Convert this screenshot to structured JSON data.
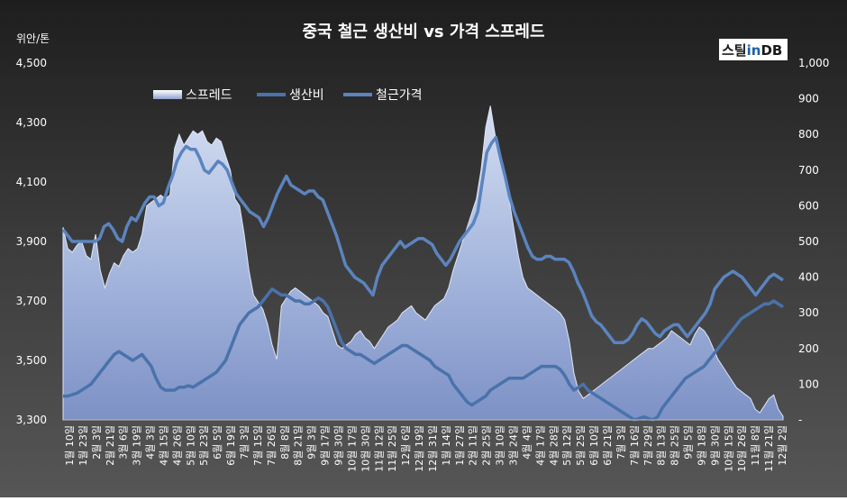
{
  "chart_data": {
    "type": "line",
    "title": "중국 철근 생산비 vs 가격 스프레드",
    "y_left_label": "위안/톤",
    "y_left_lim": [
      3300,
      4500
    ],
    "y_left_ticks": [
      "3,300",
      "3,500",
      "3,700",
      "3,900",
      "4,100",
      "4,300",
      "4,500"
    ],
    "y_right_lim": [
      0,
      1000
    ],
    "y_right_ticks": [
      "-",
      "100",
      "200",
      "300",
      "400",
      "500",
      "600",
      "700",
      "800",
      "900",
      "1,000"
    ],
    "x_tick_labels": [
      "1월 10일",
      "1월 23일",
      "2월 3일",
      "2월 21일",
      "3월 6일",
      "3월 19일",
      "4월 3일",
      "4월 15일",
      "4월 26일",
      "5월 10일",
      "5월 23일",
      "6월 5일",
      "6월 19일",
      "7월 3일",
      "7월 15일",
      "7월 26일",
      "8월 8일",
      "8월 21일",
      "9월 3일",
      "9월 17일",
      "9월 30일",
      "10월 17일",
      "10월 30일",
      "11월 12일",
      "11월 25일",
      "12월 6일",
      "12월 19일",
      "12월 31일",
      "1월 14일",
      "1월 27일",
      "2월 11일",
      "2월 25일",
      "3월 10일",
      "3월 24일",
      "4월 4일",
      "4월 17일",
      "4월 28일",
      "5월 12일",
      "5월 25일",
      "6월 10일",
      "6월 21일",
      "7월 3일",
      "7월 16일",
      "7월 29일",
      "8월 13일",
      "8월 25일",
      "9월 5일",
      "9월 18일",
      "9월 30일",
      "10월 15일",
      "10월 26일",
      "11월 8일",
      "11월 21일",
      "12월 2일"
    ],
    "series": [
      {
        "name": "스프레드",
        "axis": "right",
        "style": "area",
        "values": [
          540,
          480,
          470,
          490,
          500,
          460,
          450,
          520,
          420,
          370,
          410,
          440,
          430,
          460,
          480,
          470,
          480,
          520,
          600,
          610,
          620,
          630,
          620,
          630,
          760,
          800,
          770,
          790,
          810,
          800,
          810,
          780,
          770,
          790,
          780,
          740,
          700,
          620,
          600,
          520,
          420,
          350,
          330,
          310,
          270,
          210,
          170,
          320,
          340,
          360,
          370,
          360,
          350,
          340,
          330,
          320,
          300,
          290,
          250,
          210,
          200,
          210,
          220,
          240,
          250,
          230,
          220,
          200,
          220,
          240,
          260,
          270,
          280,
          300,
          310,
          320,
          300,
          290,
          280,
          300,
          320,
          330,
          340,
          370,
          420,
          460,
          500,
          540,
          580,
          620,
          700,
          820,
          880,
          800,
          730,
          680,
          620,
          540,
          460,
          400,
          370,
          360,
          350,
          340,
          330,
          320,
          310,
          300,
          280,
          220,
          130,
          80,
          60,
          70,
          80,
          90,
          100,
          110,
          120,
          130,
          140,
          150,
          160,
          170,
          180,
          190,
          200,
          200,
          210,
          220,
          230,
          250,
          240,
          230,
          220,
          210,
          240,
          260,
          250,
          230,
          200,
          170,
          150,
          130,
          110,
          90,
          80,
          70,
          60,
          30,
          20,
          40,
          60,
          70,
          30,
          10
        ]
      },
      {
        "name": "생산비",
        "axis": "left",
        "style": "line",
        "values": [
          3380,
          3380,
          3385,
          3390,
          3400,
          3410,
          3420,
          3440,
          3460,
          3480,
          3500,
          3520,
          3530,
          3520,
          3510,
          3500,
          3510,
          3520,
          3500,
          3480,
          3440,
          3410,
          3400,
          3400,
          3400,
          3410,
          3410,
          3415,
          3410,
          3420,
          3430,
          3440,
          3450,
          3460,
          3480,
          3500,
          3540,
          3580,
          3620,
          3640,
          3660,
          3670,
          3680,
          3700,
          3720,
          3740,
          3730,
          3720,
          3720,
          3710,
          3700,
          3700,
          3690,
          3690,
          3700,
          3710,
          3700,
          3680,
          3640,
          3600,
          3560,
          3540,
          3530,
          3520,
          3520,
          3510,
          3500,
          3490,
          3500,
          3510,
          3520,
          3530,
          3540,
          3550,
          3550,
          3540,
          3530,
          3520,
          3510,
          3500,
          3480,
          3470,
          3460,
          3450,
          3420,
          3400,
          3380,
          3360,
          3350,
          3360,
          3370,
          3380,
          3400,
          3410,
          3420,
          3430,
          3440,
          3440,
          3440,
          3440,
          3450,
          3460,
          3470,
          3480,
          3480,
          3480,
          3480,
          3470,
          3450,
          3420,
          3400,
          3410,
          3420,
          3400,
          3390,
          3380,
          3370,
          3360,
          3350,
          3340,
          3330,
          3320,
          3310,
          3300,
          3305,
          3310,
          3305,
          3300,
          3310,
          3340,
          3360,
          3380,
          3400,
          3420,
          3440,
          3450,
          3460,
          3470,
          3480,
          3500,
          3520,
          3540,
          3560,
          3580,
          3600,
          3620,
          3640,
          3650,
          3660,
          3670,
          3680,
          3690,
          3690,
          3700,
          3690,
          3680
        ]
      },
      {
        "name": "철근가격",
        "axis": "left",
        "style": "line",
        "values": [
          3940,
          3920,
          3900,
          3900,
          3900,
          3900,
          3900,
          3900,
          3910,
          3950,
          3960,
          3940,
          3910,
          3900,
          3950,
          3980,
          3970,
          4000,
          4030,
          4050,
          4050,
          4020,
          4030,
          4080,
          4120,
          4170,
          4200,
          4220,
          4210,
          4210,
          4180,
          4140,
          4130,
          4150,
          4170,
          4160,
          4140,
          4100,
          4060,
          4040,
          4020,
          4000,
          3990,
          3980,
          3950,
          3980,
          4020,
          4060,
          4090,
          4120,
          4090,
          4080,
          4070,
          4060,
          4070,
          4070,
          4050,
          4040,
          4000,
          3960,
          3920,
          3870,
          3820,
          3800,
          3780,
          3770,
          3760,
          3740,
          3720,
          3780,
          3820,
          3840,
          3860,
          3880,
          3900,
          3880,
          3890,
          3900,
          3910,
          3910,
          3900,
          3890,
          3860,
          3840,
          3820,
          3840,
          3870,
          3900,
          3920,
          3940,
          3960,
          4000,
          4100,
          4200,
          4230,
          4250,
          4180,
          4120,
          4050,
          4000,
          3960,
          3920,
          3880,
          3850,
          3840,
          3840,
          3850,
          3850,
          3840,
          3840,
          3840,
          3830,
          3800,
          3760,
          3730,
          3690,
          3650,
          3630,
          3620,
          3600,
          3580,
          3560,
          3560,
          3560,
          3570,
          3590,
          3620,
          3640,
          3630,
          3610,
          3590,
          3580,
          3600,
          3610,
          3620,
          3620,
          3600,
          3580,
          3600,
          3620,
          3640,
          3660,
          3690,
          3740,
          3760,
          3780,
          3790,
          3800,
          3790,
          3780,
          3760,
          3740,
          3720,
          3740,
          3760,
          3780,
          3790,
          3780,
          3770
        ]
      }
    ],
    "legend_position": "top-left",
    "grid": false
  },
  "logo": {
    "text_prefix": "스틸",
    "text_in": "in",
    "text_suffix": "DB"
  }
}
